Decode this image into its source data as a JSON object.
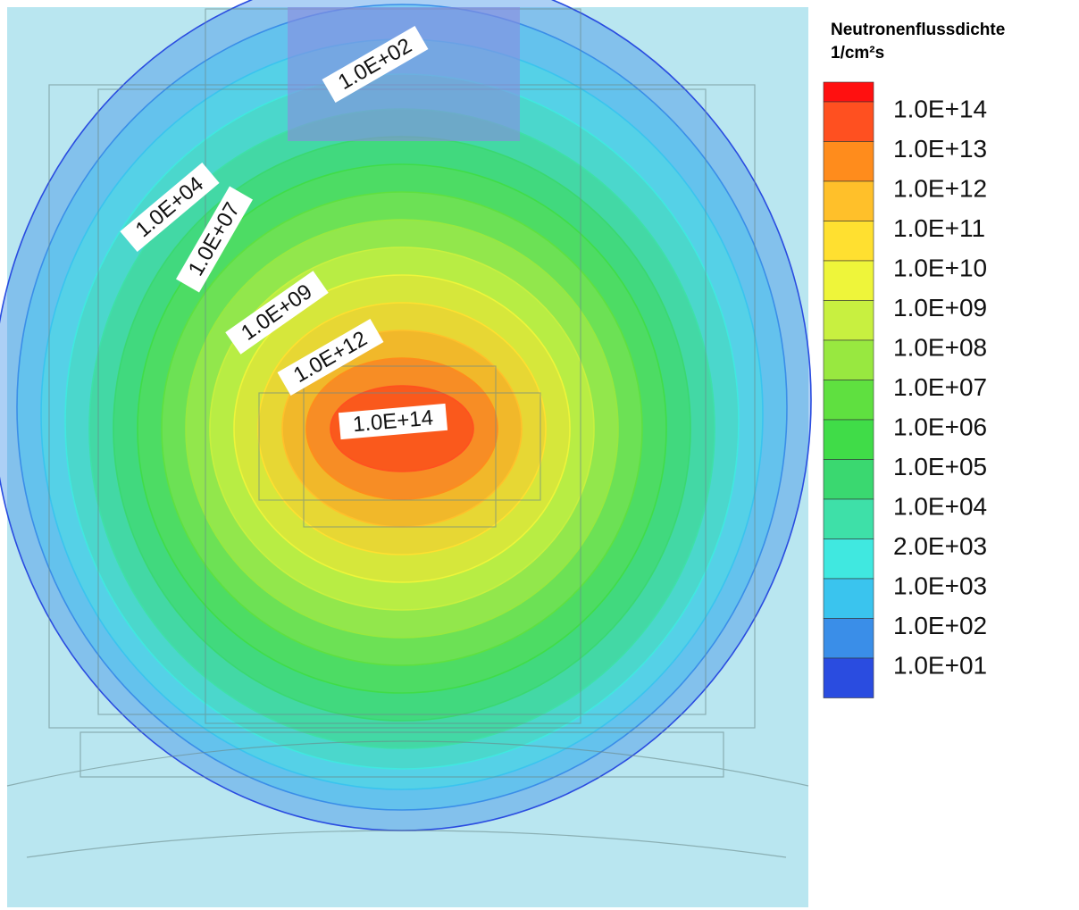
{
  "chart_data": {
    "type": "contour",
    "title": "Neutronenflussdichte",
    "unit": "1/cm²s",
    "colors": [
      "#ff1010",
      "#ff5020",
      "#ff8c1c",
      "#ffc02a",
      "#ffe030",
      "#eef53a",
      "#c8f040",
      "#98e840",
      "#5fe040",
      "#40dc48",
      "#3ad870",
      "#3ee0a8",
      "#40e8e0",
      "#3ac4ee",
      "#3a8ee8",
      "#2a4ce0"
    ],
    "levels": [
      {
        "value": 100000000000000,
        "label": "1.0E+14"
      },
      {
        "value": 10000000000000,
        "label": "1.0E+13"
      },
      {
        "value": 1000000000000,
        "label": "1.0E+12"
      },
      {
        "value": 100000000000,
        "label": "1.0E+11"
      },
      {
        "value": 10000000000,
        "label": "1.0E+10"
      },
      {
        "value": 1000000000,
        "label": "1.0E+09"
      },
      {
        "value": 100000000,
        "label": "1.0E+08"
      },
      {
        "value": 10000000,
        "label": "1.0E+07"
      },
      {
        "value": 1000000,
        "label": "1.0E+06"
      },
      {
        "value": 100000,
        "label": "1.0E+05"
      },
      {
        "value": 10000,
        "label": "1.0E+04"
      },
      {
        "value": 2000,
        "label": "2.0E+03"
      },
      {
        "value": 1000,
        "label": "1.0E+03"
      },
      {
        "value": 100,
        "label": "1.0E+02"
      },
      {
        "value": 10,
        "label": "1.0E+01"
      }
    ],
    "annotations": [
      {
        "value": 100,
        "label": "1.0E+02"
      },
      {
        "value": 10000,
        "label": "1.0E+04"
      },
      {
        "value": 10000000,
        "label": "1.0E+07"
      },
      {
        "value": 1000000000,
        "label": "1.0E+09"
      },
      {
        "value": 1000000000000,
        "label": "1.0E+12"
      },
      {
        "value": 100000000000000,
        "label": "1.0E+14"
      }
    ]
  }
}
